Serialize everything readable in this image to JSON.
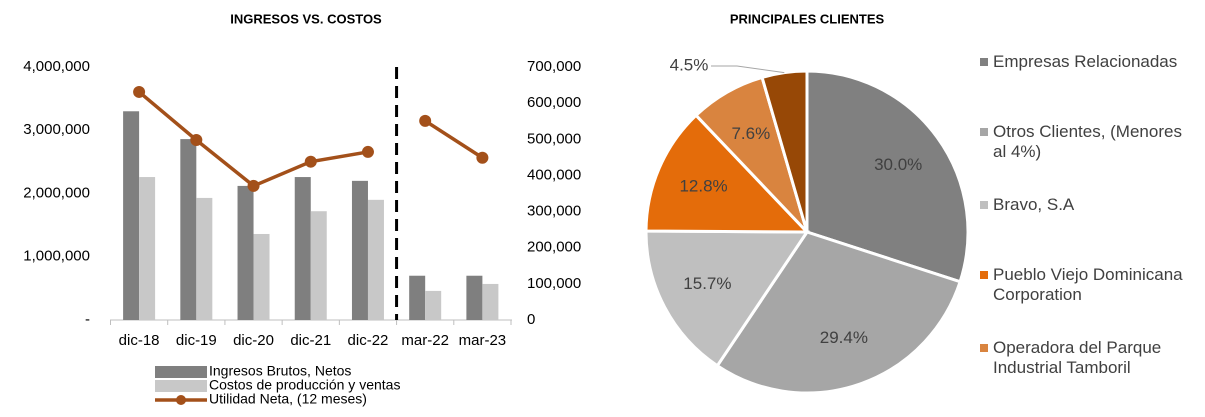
{
  "chart_data": [
    {
      "type": "bar_line",
      "title": "INGRESOS VS. COSTOS",
      "categories": [
        "dic-18",
        "dic-19",
        "dic-20",
        "dic-21",
        "dic-22",
        "mar-22",
        "mar-23"
      ],
      "divider_after": 4,
      "series": [
        {
          "name": "Ingresos Brutos, Netos",
          "color": "#7f7f7f",
          "kind": "bar",
          "values": [
            3300000,
            2860000,
            2120000,
            2260000,
            2200000,
            700000,
            700000
          ]
        },
        {
          "name": "Costos de producción y ventas",
          "color": "#c8c8c8",
          "kind": "bar",
          "values": [
            2260000,
            1930000,
            1360000,
            1720000,
            1900000,
            460000,
            570000
          ]
        },
        {
          "name": "Utilidad Neta, (12 meses)",
          "color": "#a3501a",
          "kind": "line",
          "axis": "y2",
          "values": [
            631000,
            498000,
            371000,
            438000,
            465000,
            551000,
            449000
          ]
        }
      ],
      "ylim": [
        0,
        4000000
      ],
      "yticks": [
        {
          "value": 0,
          "label": "-"
        },
        {
          "value": 1000000,
          "label": "1,000,000"
        },
        {
          "value": 2000000,
          "label": "2,000,000"
        },
        {
          "value": 3000000,
          "label": "3,000,000"
        },
        {
          "value": 4000000,
          "label": "4,000,000"
        }
      ],
      "y2lim": [
        0,
        700000
      ],
      "y2ticks": [
        0,
        {
          "value": 100000,
          "label": "100,000"
        },
        {
          "value": 200000,
          "label": "200,000"
        },
        {
          "value": 300000,
          "label": "300,000"
        },
        {
          "value": 400000,
          "label": "400,000"
        },
        {
          "value": 500000,
          "label": "500,000"
        },
        {
          "value": 600000,
          "label": "600,000"
        },
        {
          "value": 700000,
          "label": "700,000"
        }
      ]
    },
    {
      "type": "pie",
      "title": "PRINCIPALES CLIENTES",
      "categories": [
        "Empresas Relacionadas",
        "Otros Clientes, (Menores al 4%)",
        "Bravo, S.A",
        "Pueblo Viejo Dominicana Corporation",
        "Operadora del Parque Industrial Tamboril",
        null
      ],
      "values": [
        30.0,
        29.4,
        15.7,
        12.8,
        7.6,
        4.5
      ],
      "value_labels": [
        "30.0%",
        "29.4%",
        "15.7%",
        "12.8%",
        "7.6%",
        "4.5%"
      ],
      "colors": [
        "#808080",
        "#a6a6a6",
        "#bfbfbf",
        "#e46c0a",
        "#d9843f",
        "#974806"
      ]
    }
  ]
}
